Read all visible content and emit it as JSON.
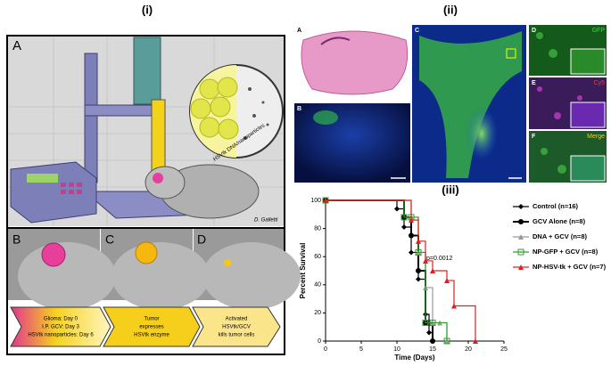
{
  "figure_labels": [
    "(i)",
    "(ii)",
    "(iii)"
  ],
  "illustration": {
    "panel_labels": [
      "A",
      "B",
      "C",
      "D"
    ],
    "inset_label": "HSVtk DNA/nanoparticles",
    "signature": "D. Galletti",
    "steps": [
      [
        "Glioma: Day 0",
        "I.P. GCV: Day 3",
        "HSVtk nanoparticles: Day 6"
      ],
      [
        "Tumor",
        "expresses",
        "HSVtk enzyme"
      ],
      [
        "Activated",
        "HSVtk/GCV",
        "kills tumor cells"
      ]
    ]
  },
  "microscopy": {
    "panel_labels": [
      "A",
      "B",
      "C",
      "D",
      "E",
      "F"
    ],
    "channels": [
      "GFP",
      "Cy5",
      "Merge"
    ]
  },
  "chart_data": {
    "type": "line",
    "step": true,
    "xlabel": "Time (Days)",
    "ylabel": "Percent Survival",
    "xlim": [
      0,
      25
    ],
    "ylim": [
      0,
      100
    ],
    "xticks": [
      0,
      5,
      10,
      15,
      20,
      25
    ],
    "yticks": [
      0,
      20,
      40,
      60,
      80,
      100
    ],
    "annotation": "p=0.0012",
    "series": [
      {
        "name": "Control (n=16)",
        "color": "#000000",
        "marker": "diamond",
        "x": [
          0,
          10,
          11,
          12,
          13,
          14,
          14.5,
          15
        ],
        "values": [
          100,
          94,
          81,
          63,
          44,
          19,
          6,
          0
        ]
      },
      {
        "name": "GCV Alone (n=8)",
        "color": "#000000",
        "marker": "circle",
        "x": [
          0,
          11,
          12,
          13,
          14,
          15
        ],
        "values": [
          100,
          88,
          75,
          50,
          13,
          0
        ]
      },
      {
        "name": "DNA + GCV (n=8)",
        "color": "#999999",
        "marker": "triangle",
        "x": [
          0,
          12,
          13,
          14,
          15,
          16,
          17
        ],
        "values": [
          100,
          88,
          63,
          38,
          13,
          13,
          0
        ]
      },
      {
        "name": "NP-GFP + GCV (n=8)",
        "color": "#2ca02c",
        "marker": "square",
        "x": [
          0,
          11,
          12,
          13,
          14,
          15,
          17
        ],
        "values": [
          100,
          88,
          88,
          63,
          13,
          13,
          0
        ]
      },
      {
        "name": "NP-HSV-tk + GCV (n=7)",
        "color": "#e02020",
        "marker": "triangle",
        "x": [
          0,
          12,
          13,
          14,
          15,
          17,
          18,
          21
        ],
        "values": [
          100,
          86,
          71,
          57,
          50,
          43,
          25,
          0
        ]
      }
    ]
  }
}
